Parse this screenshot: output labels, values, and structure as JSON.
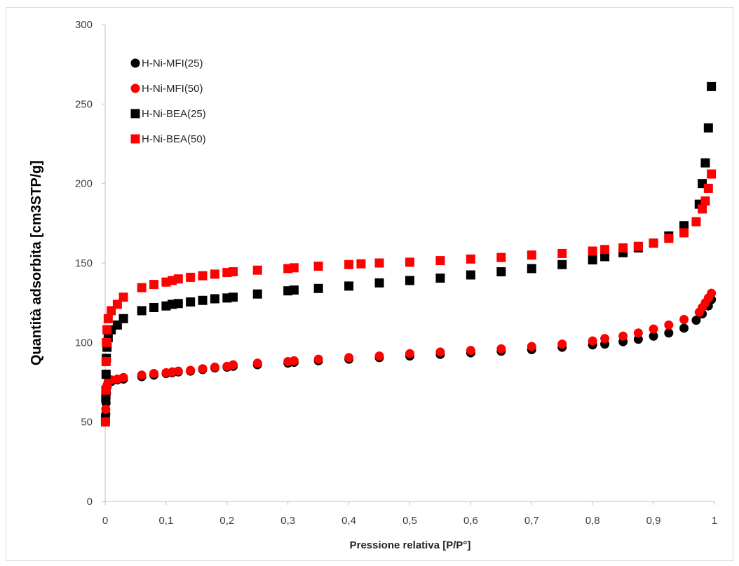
{
  "chart_data": {
    "type": "scatter",
    "title": "",
    "xlabel": "Pressione relativa [P/P°]",
    "ylabel": "Quantità adsorbita [cm3STP/g]",
    "xlim": [
      0,
      1
    ],
    "ylim": [
      0,
      300
    ],
    "x_ticks": [
      "0",
      "0,1",
      "0,2",
      "0,3",
      "0,4",
      "0,5",
      "0,6",
      "0,7",
      "0,8",
      "0,9",
      "1"
    ],
    "y_ticks": [
      "0",
      "50",
      "100",
      "150",
      "200",
      "250",
      "300"
    ],
    "grid": false,
    "legend_position": "top-left",
    "series": [
      {
        "name": "H-Ni-MFI(25)",
        "marker": "circle",
        "color": "#000000",
        "points": [
          [
            0.0005,
            50
          ],
          [
            0.001,
            55
          ],
          [
            0.0015,
            62
          ],
          [
            0.002,
            68
          ],
          [
            0.003,
            72
          ],
          [
            0.005,
            75
          ],
          [
            0.01,
            75.5
          ],
          [
            0.02,
            76.5
          ],
          [
            0.03,
            77
          ],
          [
            0.06,
            78.5
          ],
          [
            0.08,
            79.5
          ],
          [
            0.1,
            80.5
          ],
          [
            0.11,
            81
          ],
          [
            0.12,
            81.5
          ],
          [
            0.14,
            82
          ],
          [
            0.16,
            83
          ],
          [
            0.18,
            84
          ],
          [
            0.2,
            84.5
          ],
          [
            0.21,
            85
          ],
          [
            0.25,
            86
          ],
          [
            0.3,
            87
          ],
          [
            0.31,
            87.5
          ],
          [
            0.35,
            88.5
          ],
          [
            0.4,
            89.5
          ],
          [
            0.45,
            90.5
          ],
          [
            0.5,
            91.5
          ],
          [
            0.55,
            92.5
          ],
          [
            0.6,
            93.5
          ],
          [
            0.65,
            94.5
          ],
          [
            0.7,
            95.5
          ],
          [
            0.75,
            97
          ],
          [
            0.8,
            98.5
          ],
          [
            0.82,
            99
          ],
          [
            0.85,
            100.5
          ],
          [
            0.875,
            102
          ],
          [
            0.9,
            104
          ],
          [
            0.925,
            106
          ],
          [
            0.95,
            109
          ],
          [
            0.97,
            114
          ],
          [
            0.98,
            118
          ],
          [
            0.99,
            123
          ],
          [
            0.995,
            127
          ]
        ]
      },
      {
        "name": "H-Ni-MFI(50)",
        "marker": "circle",
        "color": "#ff0000",
        "points": [
          [
            0.0005,
            52
          ],
          [
            0.001,
            58
          ],
          [
            0.0015,
            65
          ],
          [
            0.002,
            70
          ],
          [
            0.003,
            73
          ],
          [
            0.005,
            75.5
          ],
          [
            0.01,
            76.5
          ],
          [
            0.02,
            77
          ],
          [
            0.03,
            78
          ],
          [
            0.06,
            79.5
          ],
          [
            0.08,
            80.5
          ],
          [
            0.1,
            81
          ],
          [
            0.11,
            81.5
          ],
          [
            0.12,
            82
          ],
          [
            0.14,
            82.5
          ],
          [
            0.16,
            83.5
          ],
          [
            0.18,
            84.5
          ],
          [
            0.2,
            85
          ],
          [
            0.21,
            86
          ],
          [
            0.25,
            87
          ],
          [
            0.3,
            88
          ],
          [
            0.31,
            88.5
          ],
          [
            0.35,
            89.5
          ],
          [
            0.4,
            90.5
          ],
          [
            0.45,
            91.5
          ],
          [
            0.5,
            93
          ],
          [
            0.55,
            94
          ],
          [
            0.6,
            95
          ],
          [
            0.65,
            96
          ],
          [
            0.7,
            97.5
          ],
          [
            0.75,
            99
          ],
          [
            0.8,
            101
          ],
          [
            0.82,
            102.5
          ],
          [
            0.85,
            104
          ],
          [
            0.875,
            106
          ],
          [
            0.9,
            108.5
          ],
          [
            0.925,
            111
          ],
          [
            0.95,
            114.5
          ],
          [
            0.975,
            119
          ],
          [
            0.98,
            122
          ],
          [
            0.985,
            125
          ],
          [
            0.99,
            128
          ],
          [
            0.995,
            131
          ]
        ]
      },
      {
        "name": "H-Ni-BEA(25)",
        "marker": "square",
        "color": "#000000",
        "points": [
          [
            0.0005,
            52
          ],
          [
            0.001,
            65
          ],
          [
            0.0015,
            80
          ],
          [
            0.002,
            90
          ],
          [
            0.003,
            97
          ],
          [
            0.005,
            103
          ],
          [
            0.01,
            108
          ],
          [
            0.02,
            111
          ],
          [
            0.03,
            115
          ],
          [
            0.06,
            120
          ],
          [
            0.08,
            122
          ],
          [
            0.1,
            123
          ],
          [
            0.11,
            124
          ],
          [
            0.12,
            124.5
          ],
          [
            0.14,
            125.5
          ],
          [
            0.16,
            126.5
          ],
          [
            0.18,
            127.5
          ],
          [
            0.2,
            128
          ],
          [
            0.21,
            128.5
          ],
          [
            0.25,
            130.5
          ],
          [
            0.3,
            132.5
          ],
          [
            0.31,
            133
          ],
          [
            0.35,
            134
          ],
          [
            0.4,
            135.5
          ],
          [
            0.45,
            137.5
          ],
          [
            0.5,
            139
          ],
          [
            0.55,
            140.5
          ],
          [
            0.6,
            142.5
          ],
          [
            0.65,
            144.5
          ],
          [
            0.7,
            146.5
          ],
          [
            0.75,
            149
          ],
          [
            0.8,
            152
          ],
          [
            0.82,
            154
          ],
          [
            0.85,
            156.5
          ],
          [
            0.875,
            159.5
          ],
          [
            0.9,
            162.5
          ],
          [
            0.925,
            167
          ],
          [
            0.95,
            173.5
          ],
          [
            0.975,
            187
          ],
          [
            0.98,
            200
          ],
          [
            0.985,
            213
          ],
          [
            0.99,
            235
          ],
          [
            0.995,
            261
          ]
        ]
      },
      {
        "name": "H-Ni-BEA(50)",
        "marker": "square",
        "color": "#ff0000",
        "points": [
          [
            0.0005,
            50
          ],
          [
            0.001,
            70
          ],
          [
            0.0015,
            88
          ],
          [
            0.002,
            100
          ],
          [
            0.003,
            108
          ],
          [
            0.005,
            115
          ],
          [
            0.01,
            120
          ],
          [
            0.02,
            124
          ],
          [
            0.03,
            128.5
          ],
          [
            0.06,
            134.5
          ],
          [
            0.08,
            136.5
          ],
          [
            0.1,
            138
          ],
          [
            0.11,
            139
          ],
          [
            0.12,
            140
          ],
          [
            0.14,
            141
          ],
          [
            0.16,
            142
          ],
          [
            0.18,
            143
          ],
          [
            0.2,
            144
          ],
          [
            0.21,
            144.5
          ],
          [
            0.25,
            145.5
          ],
          [
            0.3,
            146.5
          ],
          [
            0.31,
            147
          ],
          [
            0.35,
            148
          ],
          [
            0.4,
            149
          ],
          [
            0.42,
            149.5
          ],
          [
            0.45,
            150
          ],
          [
            0.5,
            150.5
          ],
          [
            0.55,
            151.5
          ],
          [
            0.6,
            152.5
          ],
          [
            0.65,
            153.5
          ],
          [
            0.7,
            155
          ],
          [
            0.75,
            156
          ],
          [
            0.8,
            157.5
          ],
          [
            0.82,
            158.5
          ],
          [
            0.85,
            159.5
          ],
          [
            0.875,
            160.5
          ],
          [
            0.9,
            162.5
          ],
          [
            0.925,
            165.5
          ],
          [
            0.95,
            169
          ],
          [
            0.97,
            176
          ],
          [
            0.98,
            184
          ],
          [
            0.985,
            189
          ],
          [
            0.99,
            197
          ],
          [
            0.995,
            206
          ]
        ]
      }
    ]
  }
}
